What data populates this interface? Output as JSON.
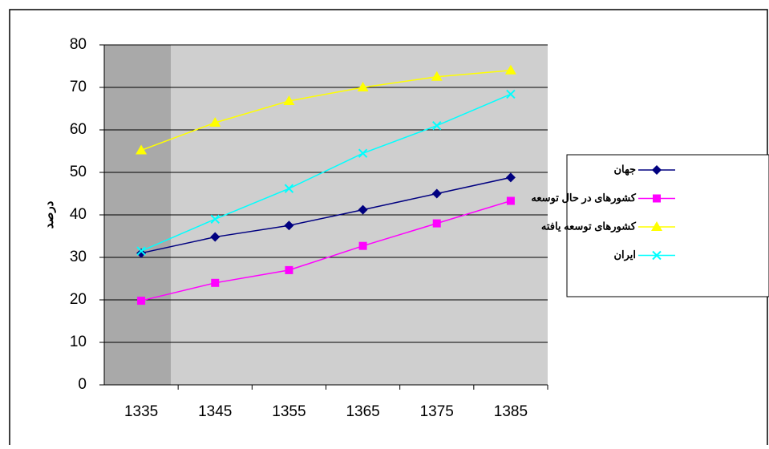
{
  "chart_data": {
    "type": "line",
    "y_label": "درصد",
    "categories": [
      "1335",
      "1345",
      "1355",
      "1365",
      "1375",
      "1385"
    ],
    "series": [
      {
        "name": "جهان",
        "color": "#000080",
        "marker": "diamond",
        "values": [
          31,
          34.8,
          37.5,
          41.2,
          45,
          48.8
        ]
      },
      {
        "name": "کشورهای در حال توسعه",
        "color": "#ff00ff",
        "marker": "square",
        "values": [
          19.8,
          24,
          27,
          32.7,
          38,
          43.3
        ]
      },
      {
        "name": "کشورهای توسعه یافته",
        "color": "#ffff00",
        "marker": "triangle",
        "values": [
          55.2,
          61.7,
          66.8,
          70,
          72.5,
          74
        ]
      },
      {
        "name": "ایران",
        "color": "#00ffff",
        "marker": "x",
        "values": [
          31.5,
          39,
          46.2,
          54.5,
          61,
          68.4
        ]
      }
    ],
    "ylim": [
      0,
      80
    ],
    "yticks": [
      0,
      10,
      20,
      30,
      40,
      50,
      60,
      70,
      80
    ],
    "grid": true
  }
}
